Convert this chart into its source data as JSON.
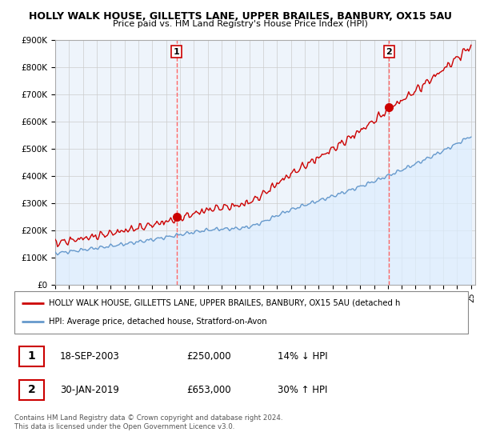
{
  "title": "HOLLY WALK HOUSE, GILLETTS LANE, UPPER BRAILES, BANBURY, OX15 5AU",
  "subtitle": "Price paid vs. HM Land Registry's House Price Index (HPI)",
  "legend_red": "HOLLY WALK HOUSE, GILLETTS LANE, UPPER BRAILES, BANBURY, OX15 5AU (detached h",
  "legend_blue": "HPI: Average price, detached house, Stratford-on-Avon",
  "sale1_date": "18-SEP-2003",
  "sale1_price": "£250,000",
  "sale1_hpi": "14% ↓ HPI",
  "sale2_date": "30-JAN-2019",
  "sale2_price": "£653,000",
  "sale2_hpi": "30% ↑ HPI",
  "footer1": "Contains HM Land Registry data © Crown copyright and database right 2024.",
  "footer2": "This data is licensed under the Open Government Licence v3.0.",
  "ylim": [
    0,
    900000
  ],
  "yticks": [
    0,
    100000,
    200000,
    300000,
    400000,
    500000,
    600000,
    700000,
    800000,
    900000
  ],
  "ytick_labels": [
    "£0",
    "£100K",
    "£200K",
    "£300K",
    "£400K",
    "£500K",
    "£600K",
    "£700K",
    "£800K",
    "£900K"
  ],
  "red_color": "#cc0000",
  "blue_color": "#6699cc",
  "blue_fill": "#ddeeff",
  "vline_color": "#ff6666",
  "background_color": "#ffffff",
  "plot_bg": "#eef4fb",
  "grid_color": "#cccccc",
  "t1_year": 2003.75,
  "t2_year": 2019.08,
  "sale1_value": 250000,
  "sale2_value": 653000
}
